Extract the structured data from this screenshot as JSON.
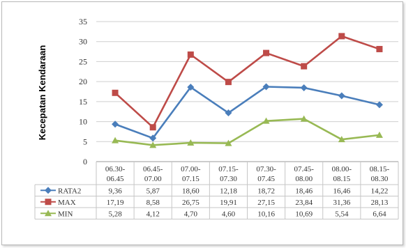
{
  "chart_data": {
    "type": "line",
    "ylabel": "Kecepatan Kendaraan",
    "xlabel": "",
    "title": "",
    "ylim": [
      0,
      35
    ],
    "yticks": [
      0,
      5,
      10,
      15,
      20,
      25,
      30,
      35
    ],
    "grid": true,
    "legend": "data-table",
    "categories": [
      [
        "06.30-",
        "06.45"
      ],
      [
        "06.45-",
        "07.00"
      ],
      [
        "07.00-",
        "07.15"
      ],
      [
        "07.15-",
        "07.30"
      ],
      [
        "07.30-",
        "07.45"
      ],
      [
        "07.45-",
        "08.00"
      ],
      [
        "08.00-",
        "08.15"
      ],
      [
        "08.15-",
        "08.30"
      ]
    ],
    "series": [
      {
        "name": "RATA2",
        "color": "#4a7ebb",
        "marker": "diamond",
        "values": [
          9.36,
          5.87,
          18.6,
          12.18,
          18.72,
          18.46,
          16.46,
          14.22
        ],
        "labels": [
          "9,36",
          "5,87",
          "18,60",
          "12,18",
          "18,72",
          "18,46",
          "16,46",
          "14,22"
        ]
      },
      {
        "name": "MAX",
        "color": "#be4b48",
        "marker": "square",
        "values": [
          17.19,
          8.58,
          26.75,
          19.91,
          27.15,
          23.84,
          31.36,
          28.13
        ],
        "labels": [
          "17,19",
          "8,58",
          "26,75",
          "19,91",
          "27,15",
          "23,84",
          "31,36",
          "28,13"
        ]
      },
      {
        "name": "MIN",
        "color": "#98b954",
        "marker": "triangle",
        "values": [
          5.28,
          4.12,
          4.7,
          4.6,
          10.16,
          10.69,
          5.54,
          6.64
        ],
        "labels": [
          "5,28",
          "4,12",
          "4,70",
          "4,60",
          "10,16",
          "10,69",
          "5,54",
          "6,64"
        ]
      }
    ]
  }
}
